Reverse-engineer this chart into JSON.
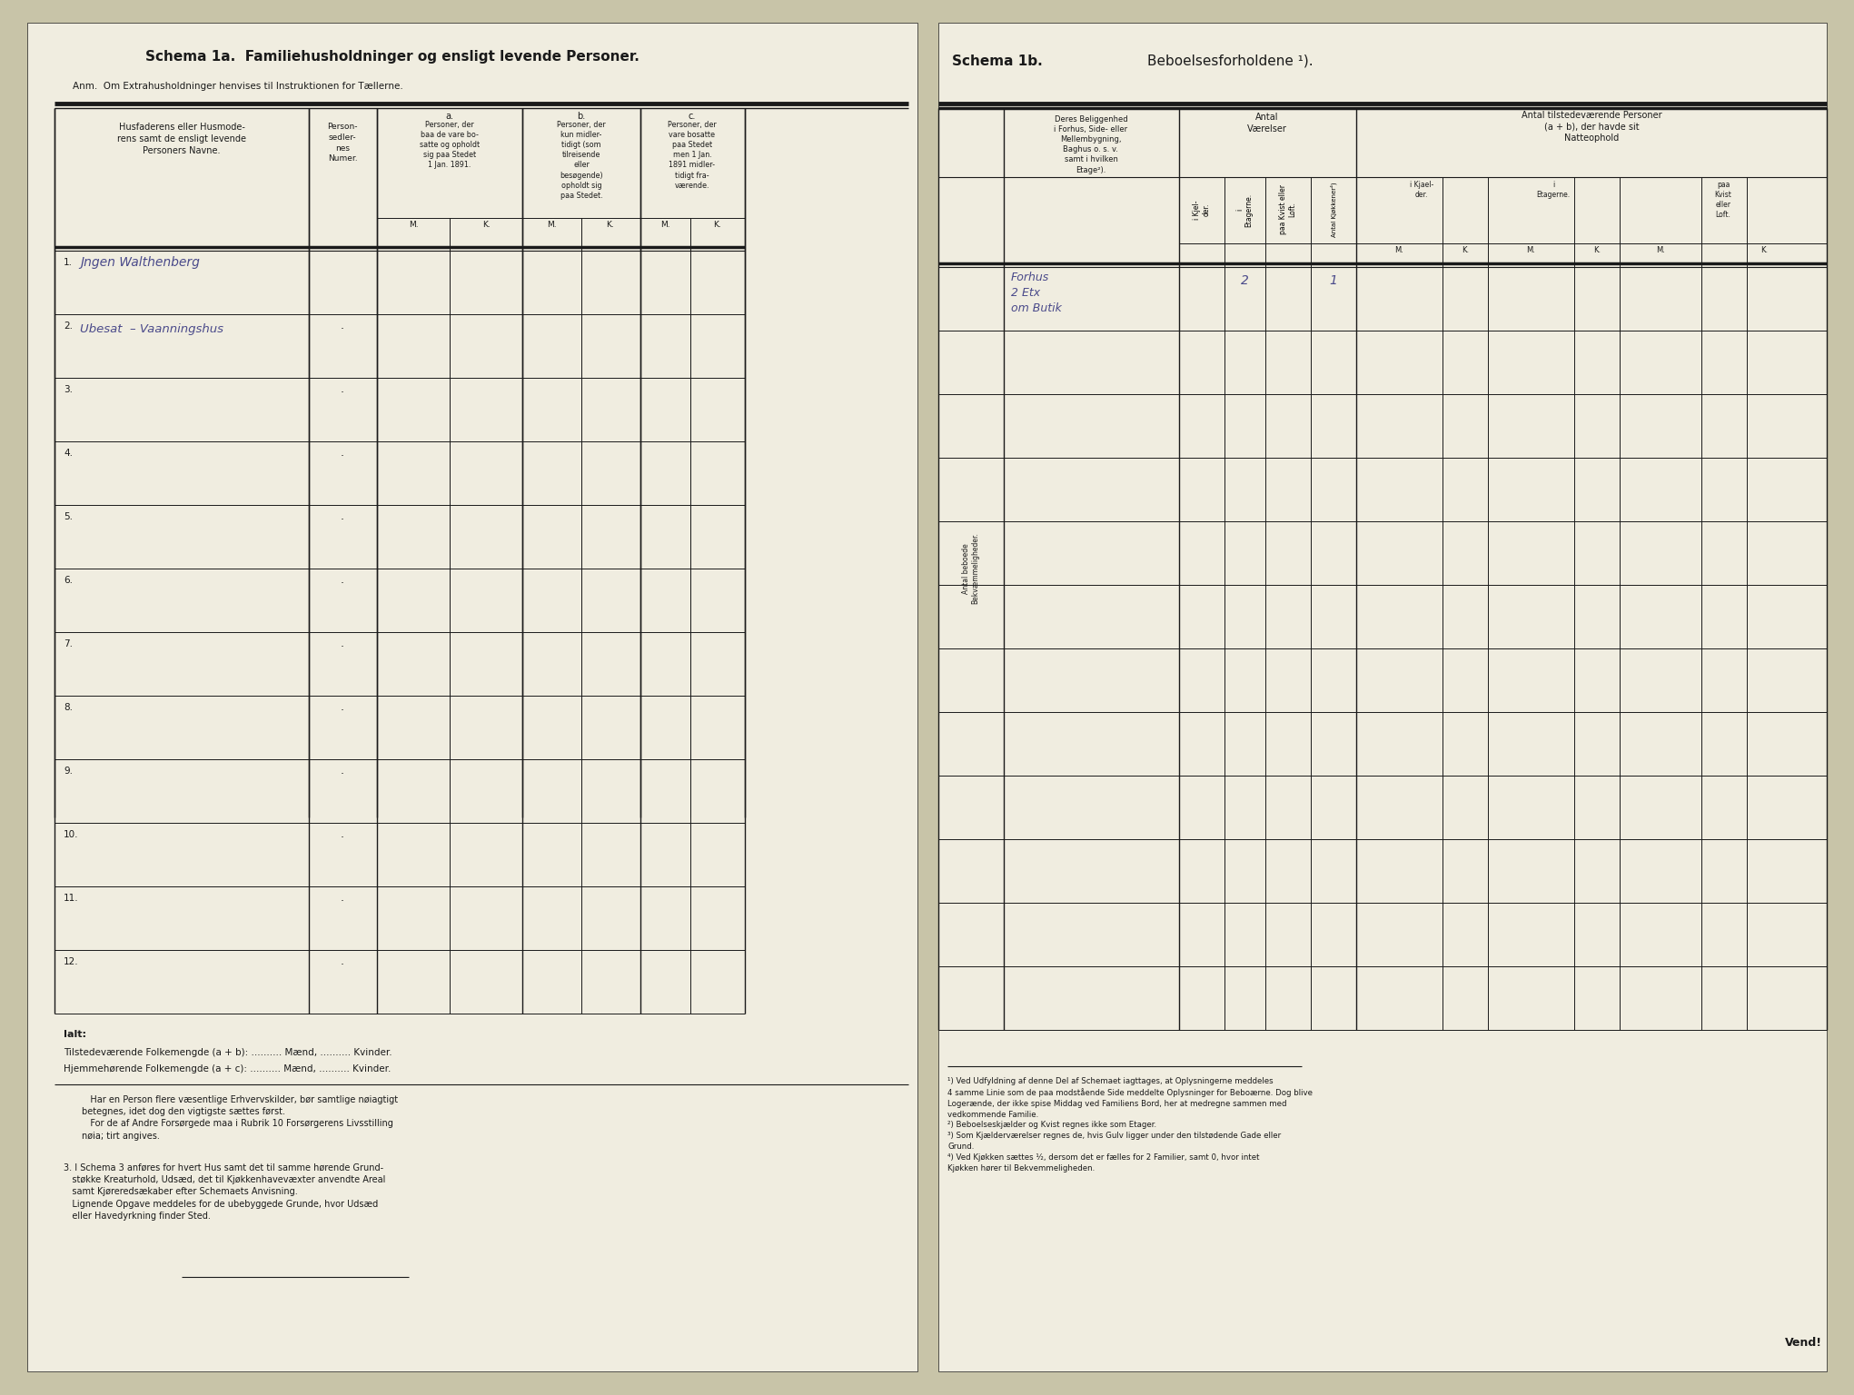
{
  "bg_color": "#c8c4a8",
  "paper_color": "#f0ede0",
  "dark_line": "#1a1a1a",
  "ink_color": "#4a4a8a",
  "title_left": "Schema 1a.  Familiehusholdninger og ensligt levende Personer.",
  "subtitle_left": "Anm.  Om Extrahusholdninger henvises til Instruktionen for Tællerne.",
  "title_right": "Schema 1b.",
  "title_right2": "Beboelsesforholdene ¹).",
  "col_header_name": "Husfaderens eller Husmode-\nrens samt de ensligt levende\nPersoners Navne.",
  "col_header_num": "Person-\nsedler-\nnes\nNumer.",
  "col_header_a": "a.",
  "col_header_a_text": "Personer, der\nbaa de vare bo-\nsatte og opholdt\nsig paa Stedet\n1 Jan. 1891.",
  "col_header_b": "b.",
  "col_header_b_text": "Personer, der\nkun midler-\ntidigt (som\ntilreisende\neller\nbesøgende)\nopholdt sig\npaa Stedet.",
  "col_header_c": "c.",
  "col_header_c_text": "Personer, der\nvare bosatte\npaa Stedet\nmen 1 Jan.\n1891 midler-\ntidigt fra-\nværende.",
  "row_labels": [
    "1.",
    "2.",
    "3.",
    "4.",
    "5.",
    "6.",
    "7.",
    "8.",
    "9.",
    "10.",
    "11.",
    "12."
  ],
  "row_entries_name": [
    "Jngen Walthenberg",
    "Ubesat  – Vaanningshus",
    "",
    "",
    "",
    "",
    "",
    "",
    "",
    "",
    "",
    ""
  ],
  "row_entries_dash": [
    false,
    true,
    true,
    true,
    true,
    true,
    true,
    true,
    true,
    true,
    true,
    true
  ],
  "footer_ialt": "Ialt:",
  "footer_line1": "Tilstedeværende Folkemengde (a + b): .......... Mænd, .......... Kvinder.",
  "footer_line2": "Hjemmehørende Folkemengde (a + c): .......... Mænd, .......... Kvinder.",
  "footnote_indent": "   Har en Person flere væsentlige Erhvervskilder, bør samtlige nøiagtigt\nbetegnes, idet dog den vigtigste sættes først.\n   For de af Andre Forsørgede maa i Rubrik 10 Forsørgerens Livsstilling\nnøia; tirt angives.",
  "footnote2": "3. I Schema 3 anføres for hvert Hus samt det til samme hørende Grund-\n   støkke Kreaturhold, Udsæd, det til Kjøkkenhavevæxter anvendte Areal\n   samt Kjøreredsækaber efter Schemaets Anvisning.\n   Lignende Opgave meddeles for de ubebyggede Grunde, hvor Udsæd\n   eller Havedyrkning finder Sted.",
  "right_col_header_beliggenhed": "Deres Beliggenhed\ni Forhus, Side- eller\nMellembygning,\nBaghus o. s. v.\nsamt i hvilken\nEtage²).",
  "right_col_antal_vaerelser": "Antal\nVærelser",
  "right_col_antal_persons": "Antal tilstedeværende Personer\n(a + b), der havde sit\nNatteophold",
  "right_sub_kjaelder": "i Kjel-\nder.",
  "right_sub_etager": "i\nEtagerne.",
  "right_sub_kvist_loft": "paa Kvist eller\nLoft.",
  "right_kjoekkener": "Antal Kjøkkener⁴)",
  "right_persons_kjaelder": "i Kjael-\nder.",
  "right_persons_etager": "i\nEtagerne.",
  "right_persons_kvist": "paa\nKvist\neller\nLoft.",
  "right_antal_beboede": "Antal beboede\nBekvæmmeligheder.",
  "right_row1_beliggenhed": "Forhus\n2 Etx\nom Butik",
  "right_row1_vaerelser_etager": "2",
  "right_row1_kjoekkener": "1",
  "right_footnotes": "¹) Ved Udfyldning af denne Del af Schemaet iagttages, at Oplysningerne meddeles\n4 samme Linie som de paa modstående Side meddelte Oplysninger for Beboærne. Dog blive\nLogerænde, der ikke spise Middag ved Familiens Bord, her at medregne sammen med\nvedkommende Familie.\n²) Beboelseskjælder og Kvist regnes ikke som Etager.\n³) Som Kjælderværelser regnes de, hvis Gulv ligger under den tilstødende Gade eller\nGrund.\n⁴) Ved Kjøkken sættes ¹⁄₂, dersom det er fælles for 2 Familier, samt 0, hvor intet\nKjøkken hører til Bekvemmeligheden.",
  "vend_text": "Vend!"
}
